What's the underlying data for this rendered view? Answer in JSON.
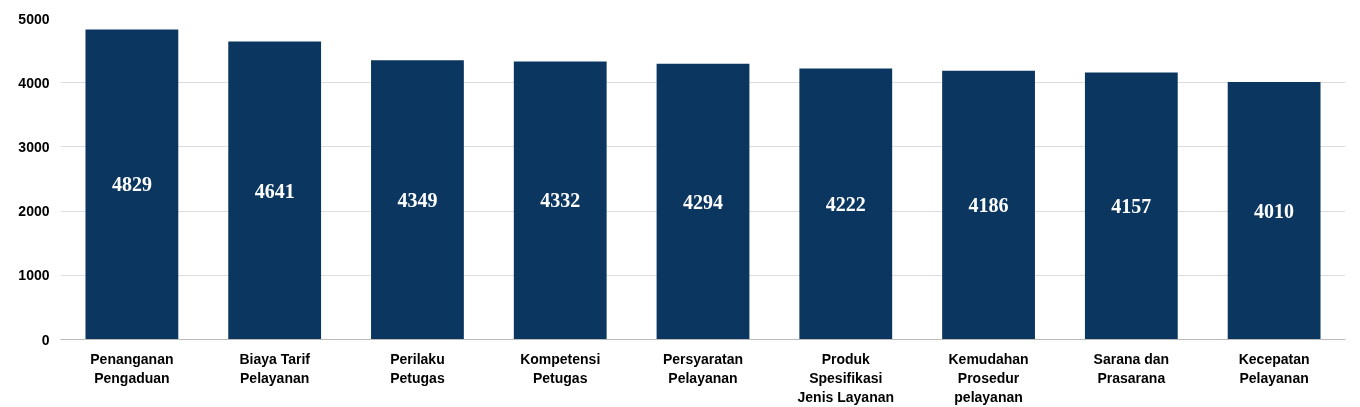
{
  "chart_data": {
    "type": "bar",
    "categories": [
      "Penanganan Pengaduan",
      "Biaya Tarif Pelayanan",
      "Perilaku Petugas",
      "Kompetensi Petugas",
      "Persyaratan Pelayanan",
      "Produk Spesifikasi Jenis Layanan",
      "Kemudahan Prosedur pelayanan",
      "Sarana dan Prasarana",
      "Kecepatan Pelayanan"
    ],
    "values": [
      4829,
      4641,
      4349,
      4332,
      4294,
      4222,
      4186,
      4157,
      4010
    ],
    "color": "#0b3660",
    "ylim": [
      0,
      5000
    ],
    "yticks": [
      0,
      1000,
      2000,
      3000,
      4000,
      5000
    ],
    "grid": "y",
    "data_labels": true
  }
}
